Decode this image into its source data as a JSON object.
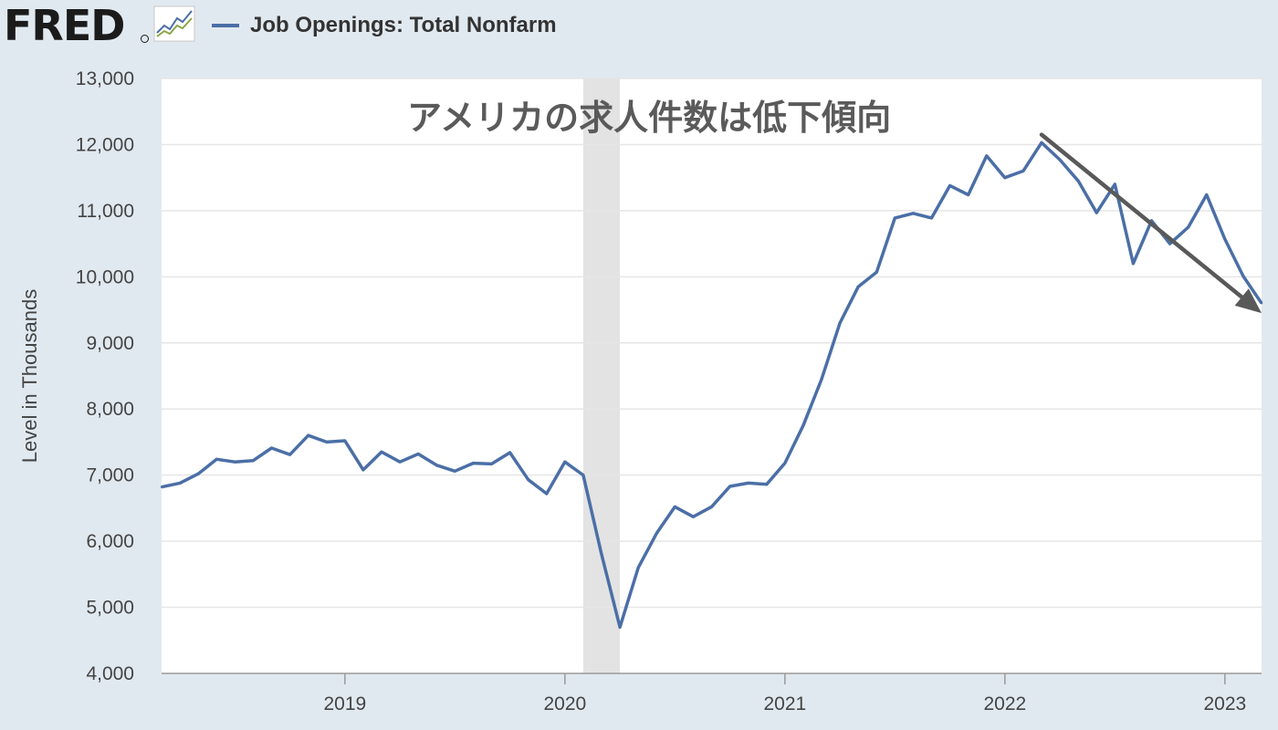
{
  "header": {
    "logo_text": "FRED",
    "logo_icon": "fred-line-graph-icon"
  },
  "chart_data": {
    "type": "line",
    "title": "",
    "legend": [
      "Job Openings: Total Nonfarm"
    ],
    "xlabel": "",
    "ylabel": "Level in Thousands",
    "ylim": [
      4000,
      13000
    ],
    "yticks": [
      4000,
      5000,
      6000,
      7000,
      8000,
      9000,
      10000,
      11000,
      12000,
      13000
    ],
    "ytick_labels": [
      "4,000",
      "5,000",
      "6,000",
      "7,000",
      "8,000",
      "9,000",
      "10,000",
      "11,000",
      "12,000",
      "13,000"
    ],
    "xlim": [
      "2018-03",
      "2023-03"
    ],
    "xtick_labels": [
      "2019",
      "2020",
      "2021",
      "2022",
      "2023"
    ],
    "grid": "horizontal",
    "recession_shading": {
      "start": "2020-02",
      "end": "2020-04"
    },
    "annotation": "アメリカの求人件数は低下傾向",
    "trend_arrow": {
      "from": [
        "2022-03",
        12150
      ],
      "to": [
        "2023-03",
        9450
      ],
      "color": "#595959"
    },
    "colors": {
      "series": "#4b6fa6",
      "recession": "#e3e3e3",
      "grid": "#e6e6e6",
      "background": "#e1e9f0"
    },
    "series": [
      {
        "name": "Job Openings: Total Nonfarm",
        "start": "2018-03",
        "values": [
          6820,
          6880,
          7020,
          7240,
          7200,
          7220,
          7410,
          7310,
          7600,
          7500,
          7520,
          7080,
          7350,
          7200,
          7320,
          7150,
          7060,
          7180,
          7170,
          7340,
          6930,
          6720,
          7200,
          7000,
          5800,
          4700,
          5600,
          6120,
          6520,
          6370,
          6520,
          6830,
          6880,
          6860,
          7180,
          7750,
          8450,
          9300,
          9850,
          10070,
          10890,
          10960,
          10890,
          11380,
          11240,
          11830,
          11500,
          11600,
          12030,
          11770,
          11450,
          10970,
          11400,
          10200,
          10850,
          10500,
          10750,
          11240,
          10570,
          10010,
          9600
        ]
      }
    ]
  }
}
